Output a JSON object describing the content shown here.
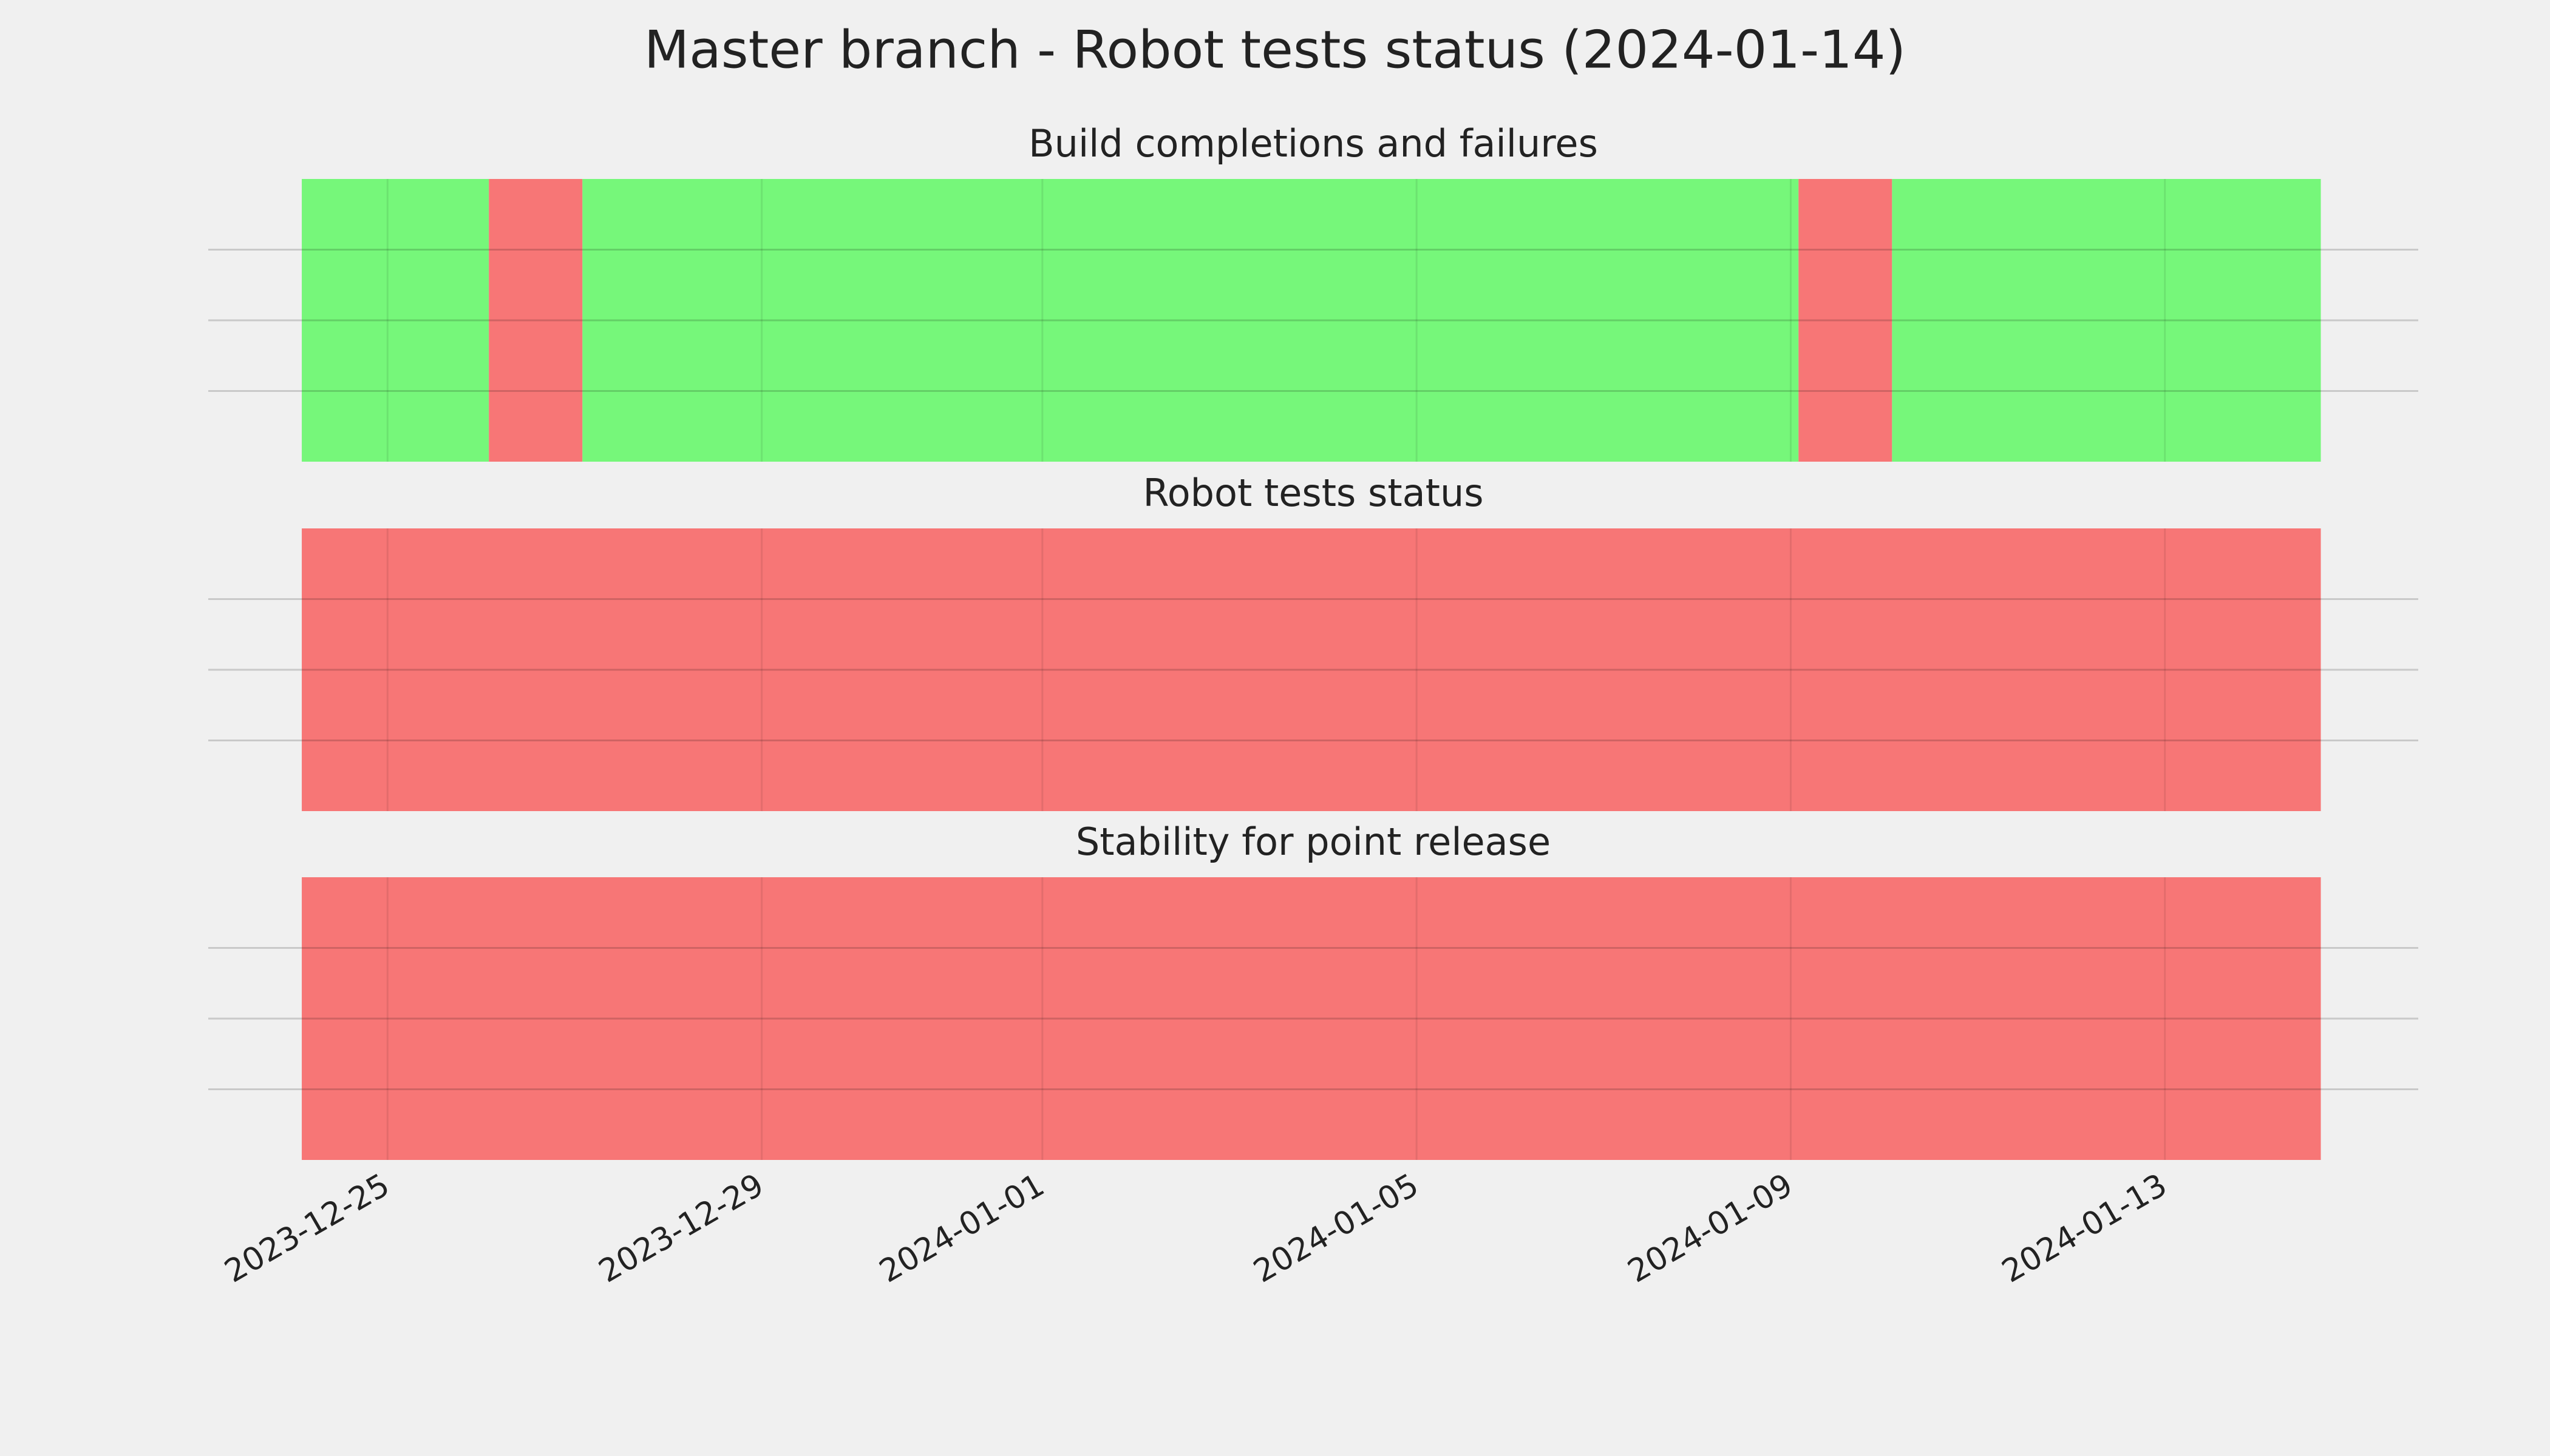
{
  "title": "Master branch - Robot tests status (2024-01-14)",
  "chart_data": [
    {
      "type": "timeline",
      "title": "Build completions and failures",
      "xlim": [
        "2023-12-23 02:00",
        "2024-01-15 17:00"
      ],
      "xticks": [
        "2023-12-25",
        "2023-12-29",
        "2024-01-01",
        "2024-01-05",
        "2024-01-09",
        "2024-01-13"
      ],
      "ylim": [
        0,
        1
      ],
      "yticks": [
        0.25,
        0.5,
        0.75
      ],
      "grid": true,
      "spans": [
        {
          "start": "2023-12-24 02:00",
          "end": "2023-12-26 02:00",
          "color": "#76f77a"
        },
        {
          "start": "2023-12-26 02:00",
          "end": "2023-12-27 02:00",
          "color": "#f77676"
        },
        {
          "start": "2023-12-27 02:00",
          "end": "2024-01-09 02:00",
          "color": "#76f77a"
        },
        {
          "start": "2024-01-09 02:00",
          "end": "2024-01-10 02:00",
          "color": "#f77676"
        },
        {
          "start": "2024-01-10 02:00",
          "end": "2024-01-14 16:00",
          "color": "#76f77a"
        }
      ]
    },
    {
      "type": "timeline",
      "title": "Robot tests status",
      "xlim": [
        "2023-12-23 02:00",
        "2024-01-15 17:00"
      ],
      "xticks": [
        "2023-12-25",
        "2023-12-29",
        "2024-01-01",
        "2024-01-05",
        "2024-01-09",
        "2024-01-13"
      ],
      "ylim": [
        0,
        1
      ],
      "yticks": [
        0.25,
        0.5,
        0.75
      ],
      "grid": true,
      "spans": [
        {
          "start": "2023-12-24 02:00",
          "end": "2024-01-14 16:00",
          "color": "#f77676"
        }
      ]
    },
    {
      "type": "timeline",
      "title": "Stability for point release",
      "xlim": [
        "2023-12-23 02:00",
        "2024-01-15 17:00"
      ],
      "xticks": [
        "2023-12-25",
        "2023-12-29",
        "2024-01-01",
        "2024-01-05",
        "2024-01-09",
        "2024-01-13"
      ],
      "ylim": [
        0,
        1
      ],
      "yticks": [
        0.25,
        0.5,
        0.75
      ],
      "grid": true,
      "spans": [
        {
          "start": "2023-12-24 02:00",
          "end": "2024-01-14 16:00",
          "color": "#f77676"
        }
      ]
    }
  ]
}
